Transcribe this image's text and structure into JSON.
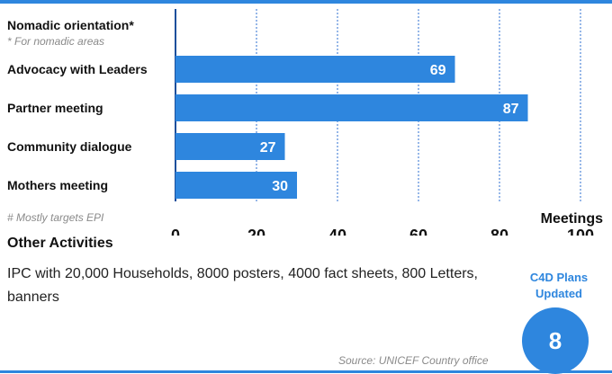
{
  "chart_data": {
    "type": "bar",
    "orientation": "horizontal",
    "header_label": "Nomadic orientation*",
    "header_note": "* For nomadic areas",
    "categories": [
      "Advocacy with Leaders",
      "Partner meeting",
      "Community dialogue",
      "Mothers meeting"
    ],
    "values": [
      69,
      87,
      27,
      30
    ],
    "xticks": [
      0,
      20,
      40,
      60,
      80,
      100
    ],
    "xlim": [
      0,
      100
    ],
    "xlabel": "Meetings",
    "footnote": "# Mostly targets EPI",
    "bar_color": "#2e86de",
    "grid": true
  },
  "other_activities": {
    "title": "Other Activities",
    "text": "IPC with 20,000 Households, 8000 posters, 4000 fact sheets, 800 Letters, banners"
  },
  "c4d": {
    "label_line1": "C4D Plans",
    "label_line2": "Updated",
    "value": "8"
  },
  "source": "Source: UNICEF Country office",
  "colors": {
    "accent": "#2e86de"
  }
}
